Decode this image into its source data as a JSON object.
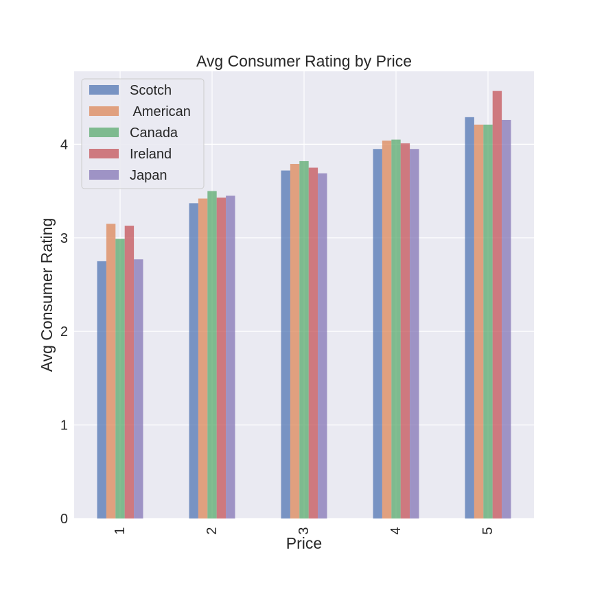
{
  "chart_data": {
    "type": "bar",
    "title": "Avg Consumer Rating by Price",
    "xlabel": "Price",
    "ylabel": "Avg Consumer Rating",
    "categories": [
      "1",
      "2",
      "3",
      "4",
      "5"
    ],
    "ylim": [
      0,
      4.78
    ],
    "yticks": [
      0,
      1,
      2,
      3,
      4
    ],
    "grid": true,
    "legend_position": "upper-left",
    "series": [
      {
        "name": "Scotch",
        "color": "#4c72b0",
        "values": [
          2.75,
          3.37,
          3.72,
          3.95,
          4.29
        ]
      },
      {
        "name": " American",
        "color": "#dd8452",
        "values": [
          3.15,
          3.42,
          3.79,
          4.04,
          4.21
        ]
      },
      {
        "name": "Canada",
        "color": "#55a868",
        "values": [
          2.99,
          3.5,
          3.82,
          4.05,
          4.21
        ]
      },
      {
        "name": "Ireland",
        "color": "#c44e52",
        "values": [
          3.13,
          3.43,
          3.75,
          4.01,
          4.57
        ]
      },
      {
        "name": "Japan",
        "color": "#8172b3",
        "values": [
          2.77,
          3.45,
          3.69,
          3.95,
          4.26
        ]
      }
    ],
    "colors": {
      "plot_background": "#eaeaf2",
      "gridline": "#ffffff",
      "text": "#262626"
    }
  }
}
